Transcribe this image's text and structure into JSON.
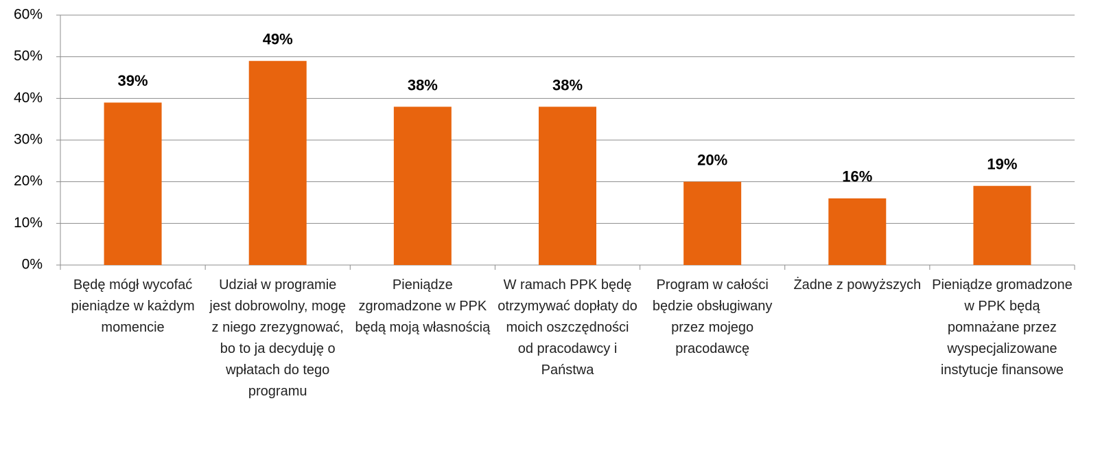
{
  "chart_data": {
    "type": "bar",
    "categories": [
      "Będę mógł wycofać pieniądze w każdym momencie",
      "Udział w programie jest dobrowolny, mogę z niego zrezygnować, bo to ja decyduję o wpłatach do tego programu",
      "Pieniądze zgromadzone w PPK będą moją własnością",
      "W ramach PPK będę otrzymywać dopłaty do moich oszczędności od pracodawcy i Państwa",
      "Program w całości będzie obsługiwany przez mojego pracodawcę",
      "Żadne z powyższych",
      "Pieniądze gromadzone w PPK będą pomnażane przez wyspecjalizowane instytucje finansowe"
    ],
    "values": [
      39,
      49,
      38,
      38,
      20,
      16,
      19
    ],
    "value_labels": [
      "39%",
      "49%",
      "38%",
      "38%",
      "20%",
      "16%",
      "19%"
    ],
    "color": "#e8640e",
    "ylim": [
      0,
      60
    ],
    "yticks": [
      {
        "value": 0,
        "label": "0%"
      },
      {
        "value": 10,
        "label": "10%"
      },
      {
        "value": 20,
        "label": "20%"
      },
      {
        "value": 30,
        "label": "30%"
      },
      {
        "value": 40,
        "label": "40%"
      },
      {
        "value": 50,
        "label": "50%"
      },
      {
        "value": 60,
        "label": "60%"
      }
    ],
    "grid": true
  }
}
